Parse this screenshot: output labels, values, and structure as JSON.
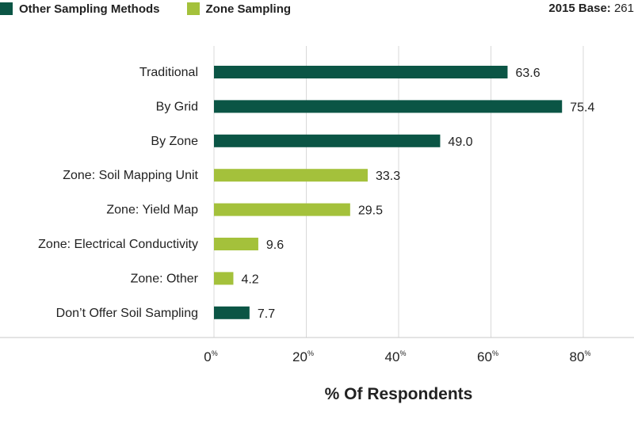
{
  "legend": [
    {
      "label": "Other Sampling Methods",
      "color": "#0b5545"
    },
    {
      "label": "Zone Sampling",
      "color": "#a4c13b"
    }
  ],
  "base": {
    "label": "2015 Base:",
    "value": "261"
  },
  "chart_data": {
    "type": "bar",
    "orientation": "horizontal",
    "categories": [
      "Traditional",
      "By Grid",
      "By Zone",
      "Zone: Soil Mapping Unit",
      "Zone: Yield Map",
      "Zone: Electrical Conductivity",
      "Zone: Other",
      "Don’t Offer Soil Sampling"
    ],
    "values": [
      63.6,
      75.4,
      49.0,
      33.3,
      29.5,
      9.6,
      4.2,
      7.7
    ],
    "value_labels": [
      "63.6",
      "75.4",
      "49.0",
      "33.3",
      "29.5",
      "9.6",
      "4.2",
      "7.7"
    ],
    "groups": [
      "Other Sampling Methods",
      "Other Sampling Methods",
      "Other Sampling Methods",
      "Zone Sampling",
      "Zone Sampling",
      "Zone Sampling",
      "Zone Sampling",
      "Other Sampling Methods"
    ],
    "xlim": [
      0,
      80
    ],
    "xticks": [
      0,
      20,
      40,
      60,
      80
    ],
    "xtick_labels": [
      "0",
      "20",
      "40",
      "60",
      "80"
    ],
    "tick_suffix": "%",
    "xlabel": "% Of Respondents",
    "grid": true
  }
}
